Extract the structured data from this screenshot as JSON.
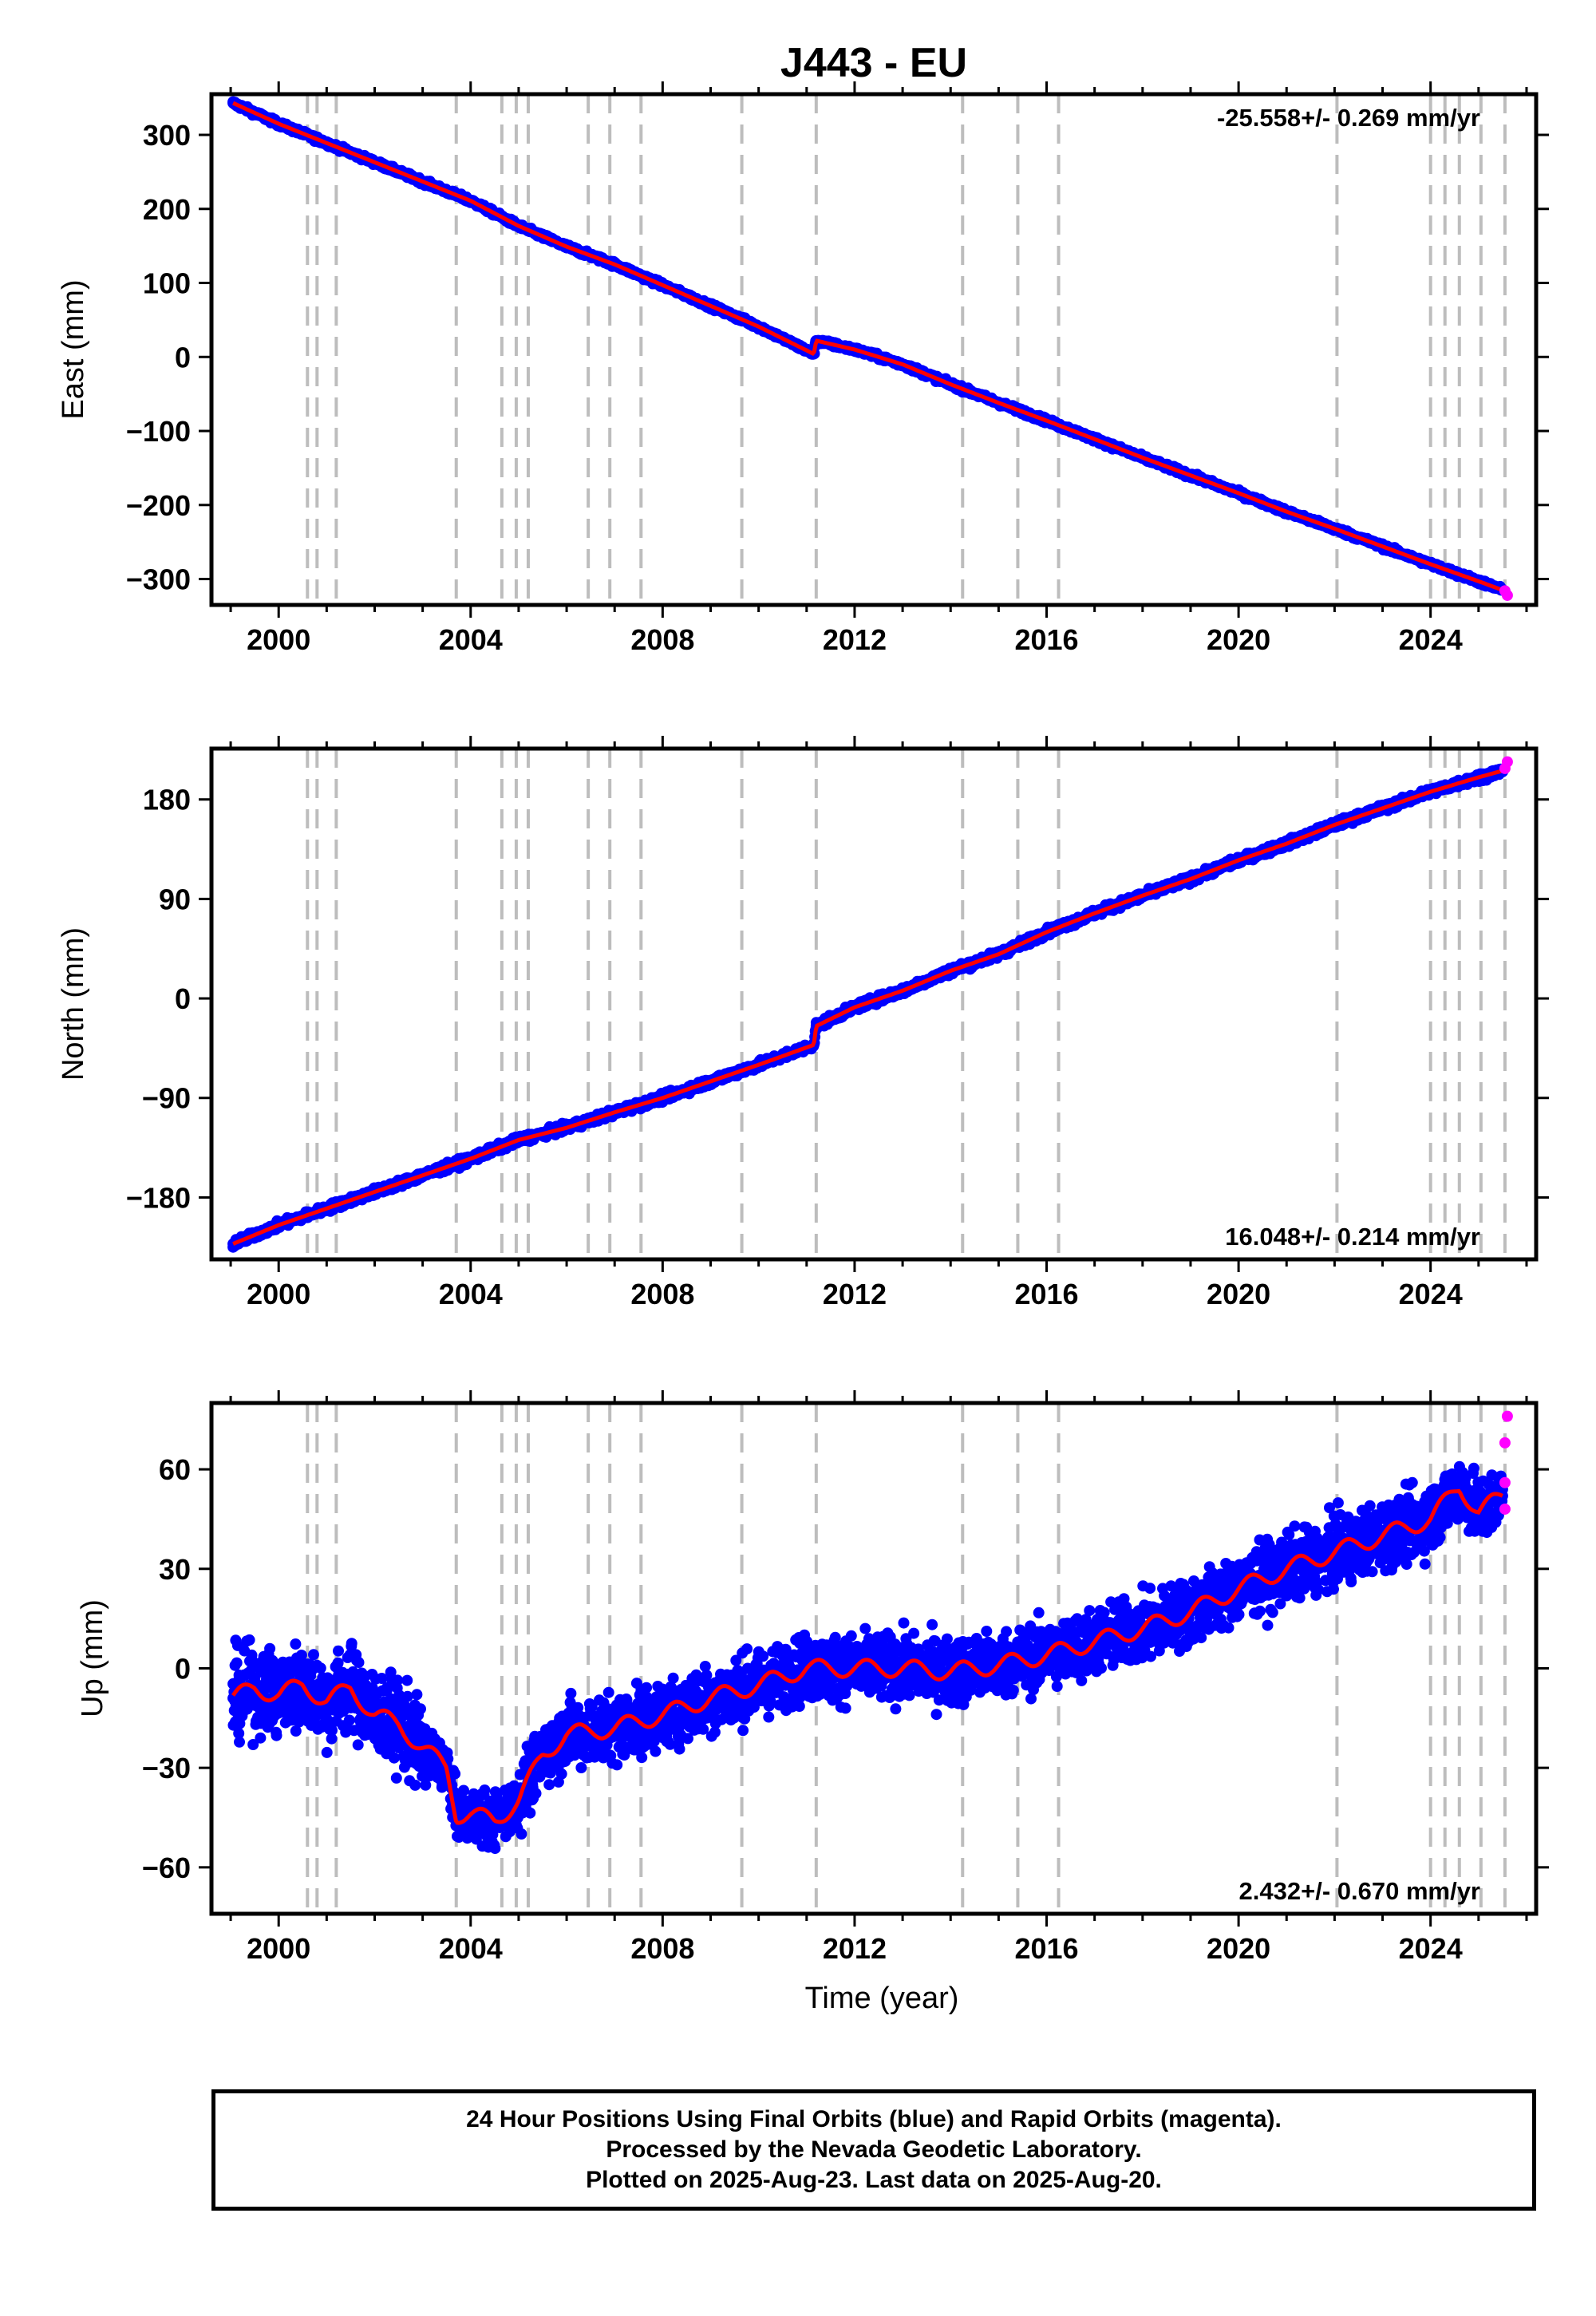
{
  "title": "J443 - EU",
  "colors": {
    "final_orbits": "#0000ff",
    "rapid_orbits": "#ff00ff",
    "model": "#ff0000",
    "event_lines": "#bdbdbd",
    "frame": "#000000"
  },
  "footer": {
    "line1": "24 Hour Positions Using Final Orbits (blue) and Rapid Orbits (magenta).",
    "line2": "Processed by the Nevada Geodetic Laboratory.",
    "line3": "Plotted on 2025-Aug-23. Last data on 2025-Aug-20."
  },
  "chart_data": [
    {
      "type": "scatter",
      "ylabel": "East (mm)",
      "xlabel": "",
      "rate_label": "-25.558+/- 0.269 mm/yr",
      "rate_position": "top-right",
      "xlim": [
        1998.6,
        2026.2
      ],
      "ylim": [
        -335,
        355
      ],
      "xticks": [
        "2000",
        "2004",
        "2008",
        "2012",
        "2016",
        "2020",
        "2024"
      ],
      "yticks": [
        "300",
        "200",
        "100",
        "0",
        "−100",
        "−200",
        "−300"
      ],
      "ytick_values": [
        300,
        200,
        100,
        0,
        -100,
        -200,
        -300
      ],
      "event_lines_x": [
        2000.6,
        2000.8,
        2001.2,
        2003.7,
        2004.65,
        2004.95,
        2005.2,
        2006.45,
        2006.9,
        2007.55,
        2009.65,
        2011.2,
        2014.25,
        2015.4,
        2016.25,
        2022.05,
        2024.0,
        2024.3,
        2024.6,
        2025.05,
        2025.55
      ],
      "series": [
        {
          "name": "Final Orbits",
          "x": [
            1999.05,
            2000.0,
            2001.0,
            2002.0,
            2003.0,
            2004.0,
            2005.0,
            2006.0,
            2007.0,
            2008.0,
            2009.0,
            2010.0,
            2011.15,
            2011.2,
            2012.0,
            2013.0,
            2014.0,
            2015.0,
            2016.0,
            2017.0,
            2018.0,
            2019.0,
            2020.0,
            2021.0,
            2022.0,
            2023.0,
            2024.0,
            2025.0,
            2025.5
          ],
          "y": [
            343,
            315,
            289,
            263,
            237,
            211,
            177,
            149,
            125,
            97,
            69,
            41,
            4,
            22,
            10,
            -10,
            -37,
            -62,
            -86,
            -111,
            -136,
            -160,
            -184,
            -209,
            -232,
            -256,
            -280,
            -303,
            -315
          ]
        },
        {
          "name": "Rapid Orbits",
          "x": [
            2025.55,
            2025.6
          ],
          "y": [
            -316,
            -322
          ]
        }
      ]
    },
    {
      "type": "scatter",
      "ylabel": "North (mm)",
      "xlabel": "",
      "rate_label": "16.048+/- 0.214 mm/yr",
      "rate_position": "bottom-right",
      "xlim": [
        1998.6,
        2026.2
      ],
      "ylim": [
        -236,
        226
      ],
      "xticks": [
        "2000",
        "2004",
        "2008",
        "2012",
        "2016",
        "2020",
        "2024"
      ],
      "yticks": [
        "180",
        "90",
        "0",
        "−90",
        "−180"
      ],
      "ytick_values": [
        180,
        90,
        0,
        -90,
        -180
      ],
      "event_lines_x": [
        2000.6,
        2000.8,
        2001.2,
        2003.7,
        2004.65,
        2004.95,
        2005.2,
        2006.45,
        2006.9,
        2007.55,
        2009.65,
        2011.2,
        2014.25,
        2015.4,
        2016.25,
        2022.05,
        2024.0,
        2024.3,
        2024.6,
        2025.05,
        2025.55
      ],
      "series": [
        {
          "name": "Final Orbits",
          "x": [
            1999.05,
            2000.0,
            2001.0,
            2002.0,
            2003.0,
            2004.0,
            2005.0,
            2006.0,
            2007.0,
            2008.0,
            2009.0,
            2010.0,
            2011.15,
            2011.2,
            2012.0,
            2013.0,
            2014.0,
            2015.0,
            2016.0,
            2017.0,
            2018.0,
            2019.0,
            2020.0,
            2021.0,
            2022.0,
            2023.0,
            2024.0,
            2025.0,
            2025.5
          ],
          "y": [
            -222,
            -205,
            -190,
            -175,
            -160,
            -145,
            -128,
            -117,
            -103,
            -90,
            -75,
            -60,
            -42,
            -25,
            -8,
            7,
            25,
            40,
            60,
            77,
            93,
            108,
            125,
            140,
            157,
            172,
            187,
            200,
            206
          ]
        },
        {
          "name": "Rapid Orbits",
          "x": [
            2025.55,
            2025.6
          ],
          "y": [
            208,
            214
          ]
        }
      ]
    },
    {
      "type": "scatter",
      "ylabel": "Up (mm)",
      "xlabel": "Time (year)",
      "rate_label": "2.432+/- 0.670 mm/yr",
      "rate_position": "bottom-right",
      "xlim": [
        1998.6,
        2026.2
      ],
      "ylim": [
        -74,
        80
      ],
      "xticks": [
        "2000",
        "2004",
        "2008",
        "2012",
        "2016",
        "2020",
        "2024"
      ],
      "yticks": [
        "60",
        "30",
        "0",
        "−30",
        "−60"
      ],
      "ytick_values": [
        60,
        30,
        0,
        -30,
        -60
      ],
      "event_lines_x": [
        2000.6,
        2000.8,
        2001.2,
        2003.7,
        2004.65,
        2004.95,
        2005.2,
        2006.45,
        2006.9,
        2007.55,
        2009.65,
        2011.2,
        2014.25,
        2015.4,
        2016.25,
        2022.05,
        2024.0,
        2024.3,
        2024.6,
        2025.05,
        2025.55
      ],
      "series": [
        {
          "name": "Final Orbits",
          "x": [
            1999.05,
            1999.5,
            2000.0,
            2000.5,
            2001.0,
            2001.5,
            2002.0,
            2002.5,
            2003.0,
            2003.5,
            2003.7,
            2004.0,
            2004.5,
            2005.0,
            2005.5,
            2006.0,
            2007.0,
            2008.0,
            2009.0,
            2010.0,
            2011.0,
            2012.0,
            2013.0,
            2014.0,
            2015.0,
            2016.0,
            2017.0,
            2018.0,
            2019.0,
            2020.0,
            2021.0,
            2022.0,
            2023.0,
            2024.0,
            2024.6,
            2025.0,
            2025.5
          ],
          "y": [
            -9,
            -6,
            -8,
            -5,
            -10,
            -6,
            -14,
            -17,
            -24,
            -30,
            -44,
            -44,
            -46,
            -40,
            -26,
            -20,
            -18,
            -14,
            -9,
            -5,
            0,
            0,
            0,
            -1,
            1,
            4,
            8,
            12,
            17,
            24,
            30,
            35,
            40,
            45,
            55,
            47,
            52
          ]
        },
        {
          "name": "Rapid Orbits",
          "x": [
            2025.55,
            2025.55,
            2025.55,
            2025.6
          ],
          "y": [
            48,
            56,
            68,
            76
          ]
        }
      ]
    }
  ]
}
